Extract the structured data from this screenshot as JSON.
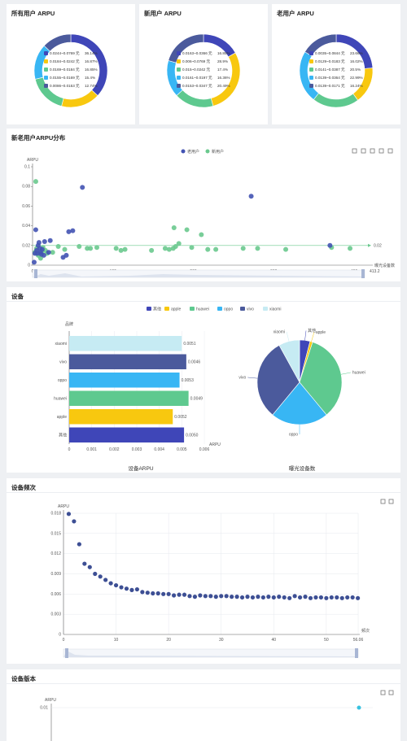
{
  "colors": {
    "c1": "#3f46b8",
    "c2": "#f8c80f",
    "c3": "#5ec98f",
    "c4": "#38b6f4",
    "c5": "#c6ebf3",
    "c6": "#4b5a9c",
    "old": "#4353b3",
    "new": "#6ac98e",
    "freq": "#3d4f94",
    "version": "#38c2e0"
  },
  "donuts": [
    {
      "title": "所有用户 ARPU",
      "legend": [
        {
          "label": "0.0244~0.0769 元",
          "pct": "36.14%",
          "value": 36.14,
          "color": "#3f46b8"
        },
        {
          "label": "0.0184~0.0242 元",
          "pct": "16.87%",
          "value": 16.87,
          "color": "#f8c80f"
        },
        {
          "label": "0.0169~0.0184 元",
          "pct": "16.85%",
          "value": 16.85,
          "color": "#5ec98f"
        },
        {
          "label": "0.0155~0.0169 元",
          "pct": "15.4%",
          "value": 15.4,
          "color": "#38b6f4"
        },
        {
          "label": "0.0086~0.0153 元",
          "pct": "12.74%",
          "value": 12.74,
          "color": "#4b5a9c"
        }
      ]
    },
    {
      "title": "新用户 ARPU",
      "legend": [
        {
          "label": "0.0163~0.0366 元",
          "pct": "16.85%",
          "value": 16.85,
          "color": "#3f46b8"
        },
        {
          "label": "0.006~0.0769 元",
          "pct": "28.9%",
          "value": 28.9,
          "color": "#f8c80f"
        },
        {
          "label": "0.015~0.0242 元",
          "pct": "17.4%",
          "value": 17.4,
          "color": "#5ec98f"
        },
        {
          "label": "0.0161~0.0197 元",
          "pct": "16.36%",
          "value": 16.36,
          "color": "#38b6f4"
        },
        {
          "label": "0.0153~0.0347 元",
          "pct": "20.49%",
          "value": 20.49,
          "color": "#4b5a9c"
        }
      ]
    },
    {
      "title": "老用户 ARPU",
      "legend": [
        {
          "label": "0.0035~0.0844 元",
          "pct": "23.66%",
          "value": 23.66,
          "color": "#3f46b8"
        },
        {
          "label": "0.0129~0.0183 元",
          "pct": "16.02%",
          "value": 16.02,
          "color": "#f8c80f"
        },
        {
          "label": "0.0141~0.0387 元",
          "pct": "20.5%",
          "value": 20.5,
          "color": "#5ec98f"
        },
        {
          "label": "0.0139~0.0364 元",
          "pct": "22.99%",
          "value": 22.99,
          "color": "#38b6f4"
        },
        {
          "label": "0.0139~0.0171 元",
          "pct": "16.24%",
          "value": 16.24,
          "color": "#4b5a9c"
        }
      ]
    }
  ],
  "scatter_section": {
    "title": "新老用户ARPU分布",
    "legend": [
      "老用户",
      "新用户"
    ],
    "y_axis_label": "ARPU",
    "x_axis_label": "曝光设备数",
    "y_ticks": [
      "0",
      "0.02",
      "0.04",
      "0.06",
      "0.08",
      "0.1"
    ],
    "x_ticks": [
      "0",
      "100",
      "200",
      "300",
      "400"
    ],
    "x_max_label": "413.2",
    "markline_label": "0.02"
  },
  "device_section": {
    "title": "设备",
    "legend": [
      "其他",
      "apple",
      "huawei",
      "oppo",
      "vivo",
      "xiaomi"
    ],
    "bar_axis_title": "品牌",
    "bar_x_label": "ARPU",
    "bar_x_ticks": [
      "0",
      "0.001",
      "0.002",
      "0.003",
      "0.004",
      "0.005",
      "0.006"
    ],
    "bar_bottom_label": "设备ARPU",
    "pie_bottom_label": "曝光设备数",
    "bar_value_labels": [
      "0.0050",
      "0.0052",
      "0.0049",
      "0.0053",
      "0.0046",
      "0.0051"
    ]
  },
  "freq_section": {
    "title": "设备频次",
    "y_axis_label": "ARPU",
    "x_axis_label": "频次",
    "y_ticks": [
      "0",
      "0.003",
      "0.006",
      "0.009",
      "0.012",
      "0.015",
      "0.018"
    ],
    "x_ticks": [
      "0",
      "10",
      "20",
      "30",
      "40",
      "50"
    ],
    "x_max_label": "56.06"
  },
  "version_section": {
    "title": "设备版本",
    "y_axis_label": "ARPU",
    "y_ticks": [
      "0.01"
    ]
  },
  "chart_data": [
    {
      "type": "pie",
      "title": "所有用户 ARPU",
      "categories": [
        "0.0244~0.0769 元",
        "0.0184~0.0242 元",
        "0.0169~0.0184 元",
        "0.0155~0.0169 元",
        "0.0086~0.0153 元"
      ],
      "values": [
        36.14,
        16.87,
        16.85,
        15.4,
        12.74
      ]
    },
    {
      "type": "pie",
      "title": "新用户 ARPU",
      "categories": [
        "0.0163~0.0366 元",
        "0.006~0.0769 元",
        "0.015~0.0242 元",
        "0.0161~0.0197 元",
        "0.0153~0.0347 元"
      ],
      "values": [
        16.85,
        28.9,
        17.4,
        16.36,
        20.49
      ]
    },
    {
      "type": "pie",
      "title": "老用户 ARPU",
      "categories": [
        "0.0035~0.0844 元",
        "0.0129~0.0183 元",
        "0.0141~0.0387 元",
        "0.0139~0.0364 元",
        "0.0139~0.0171 元"
      ],
      "values": [
        23.66,
        16.02,
        20.5,
        22.99,
        16.24
      ]
    },
    {
      "type": "scatter",
      "title": "新老用户ARPU分布",
      "xlabel": "曝光设备数",
      "ylabel": "ARPU",
      "xlim": [
        0,
        413.2
      ],
      "ylim": [
        0,
        0.1
      ],
      "series": [
        {
          "name": "老用户",
          "points": [
            [
              2,
              0.003
            ],
            [
              3,
              0.012
            ],
            [
              4,
              0.036
            ],
            [
              5,
              0.015
            ],
            [
              6,
              0.012
            ],
            [
              7,
              0.02
            ],
            [
              8,
              0.023
            ],
            [
              9,
              0.017
            ],
            [
              10,
              0.013
            ],
            [
              11,
              0.011
            ],
            [
              12,
              0.016
            ],
            [
              14,
              0.01
            ],
            [
              15,
              0.024
            ],
            [
              20,
              0.013
            ],
            [
              22,
              0.025
            ],
            [
              38,
              0.008
            ],
            [
              42,
              0.01
            ],
            [
              45,
              0.034
            ],
            [
              50,
              0.035
            ],
            [
              62,
              0.079
            ],
            [
              272,
              0.07
            ],
            [
              370,
              0.02
            ]
          ]
        },
        {
          "name": "新用户",
          "points": [
            [
              3,
              0.013
            ],
            [
              4,
              0.085
            ],
            [
              5,
              0.017
            ],
            [
              7,
              0.01
            ],
            [
              8,
              0.012
            ],
            [
              10,
              0.007
            ],
            [
              12,
              0.014
            ],
            [
              13,
              0.018
            ],
            [
              16,
              0.015
            ],
            [
              18,
              0.012
            ],
            [
              25,
              0.013
            ],
            [
              32,
              0.019
            ],
            [
              40,
              0.016
            ],
            [
              58,
              0.019
            ],
            [
              68,
              0.017
            ],
            [
              72,
              0.017
            ],
            [
              80,
              0.018
            ],
            [
              104,
              0.017
            ],
            [
              110,
              0.015
            ],
            [
              115,
              0.016
            ],
            [
              148,
              0.015
            ],
            [
              165,
              0.017
            ],
            [
              170,
              0.016
            ],
            [
              175,
              0.017
            ],
            [
              176,
              0.038
            ],
            [
              178,
              0.019
            ],
            [
              182,
              0.022
            ],
            [
              192,
              0.036
            ],
            [
              198,
              0.018
            ],
            [
              210,
              0.031
            ],
            [
              218,
              0.016
            ],
            [
              228,
              0.016
            ],
            [
              262,
              0.017
            ],
            [
              280,
              0.017
            ],
            [
              315,
              0.016
            ],
            [
              372,
              0.018
            ],
            [
              395,
              0.017
            ]
          ]
        }
      ]
    },
    {
      "type": "bar",
      "title": "设备ARPU",
      "xlabel": "ARPU",
      "ylabel": "品牌",
      "categories": [
        "其他",
        "apple",
        "huawei",
        "oppo",
        "vivo",
        "xiaomi"
      ],
      "values": [
        0.0051,
        0.0046,
        0.0053,
        0.0049,
        0.0052,
        0.005
      ],
      "xlim": [
        0,
        0.006
      ]
    },
    {
      "type": "pie",
      "title": "曝光设备数",
      "categories": [
        "其他",
        "apple",
        "huawei",
        "oppo",
        "vivo",
        "xiaomi"
      ],
      "values": [
        4,
        1,
        34,
        22,
        31,
        8
      ]
    },
    {
      "type": "scatter",
      "title": "设备频次",
      "xlabel": "频次",
      "ylabel": "ARPU",
      "xlim": [
        0,
        56.06
      ],
      "ylim": [
        0,
        0.018
      ],
      "series": [
        {
          "name": "",
          "points": [
            [
              1,
              0.0179
            ],
            [
              2,
              0.0168
            ],
            [
              3,
              0.0134
            ],
            [
              4,
              0.0105
            ],
            [
              5,
              0.01
            ],
            [
              6,
              0.009
            ],
            [
              7,
              0.0086
            ],
            [
              8,
              0.0081
            ],
            [
              9,
              0.0076
            ],
            [
              10,
              0.0073
            ],
            [
              11,
              0.007
            ],
            [
              12,
              0.0068
            ],
            [
              13,
              0.0066
            ],
            [
              14,
              0.0067
            ],
            [
              15,
              0.0063
            ],
            [
              16,
              0.0062
            ],
            [
              17,
              0.0061
            ],
            [
              18,
              0.0061
            ],
            [
              19,
              0.006
            ],
            [
              20,
              0.006
            ],
            [
              21,
              0.0058
            ],
            [
              22,
              0.0059
            ],
            [
              23,
              0.0059
            ],
            [
              24,
              0.0057
            ],
            [
              25,
              0.0056
            ],
            [
              26,
              0.0058
            ],
            [
              27,
              0.0057
            ],
            [
              28,
              0.0057
            ],
            [
              29,
              0.0056
            ],
            [
              30,
              0.0057
            ],
            [
              31,
              0.0057
            ],
            [
              32,
              0.0056
            ],
            [
              33,
              0.0056
            ],
            [
              34,
              0.0055
            ],
            [
              35,
              0.0056
            ],
            [
              36,
              0.0055
            ],
            [
              37,
              0.0056
            ],
            [
              38,
              0.0055
            ],
            [
              39,
              0.0056
            ],
            [
              40,
              0.0055
            ],
            [
              41,
              0.0056
            ],
            [
              42,
              0.0055
            ],
            [
              43,
              0.0054
            ],
            [
              44,
              0.0057
            ],
            [
              45,
              0.0055
            ],
            [
              46,
              0.0056
            ],
            [
              47,
              0.0054
            ],
            [
              48,
              0.0055
            ],
            [
              49,
              0.0055
            ],
            [
              50,
              0.0054
            ],
            [
              51,
              0.0055
            ],
            [
              52,
              0.0055
            ],
            [
              53,
              0.0054
            ],
            [
              54,
              0.0055
            ],
            [
              55,
              0.0055
            ],
            [
              56,
              0.0054
            ]
          ]
        }
      ]
    },
    {
      "type": "line",
      "title": "设备版本",
      "ylabel": "ARPU",
      "series": [
        {
          "name": "",
          "points": [
            [
              1,
              0.01
            ]
          ]
        }
      ]
    }
  ]
}
